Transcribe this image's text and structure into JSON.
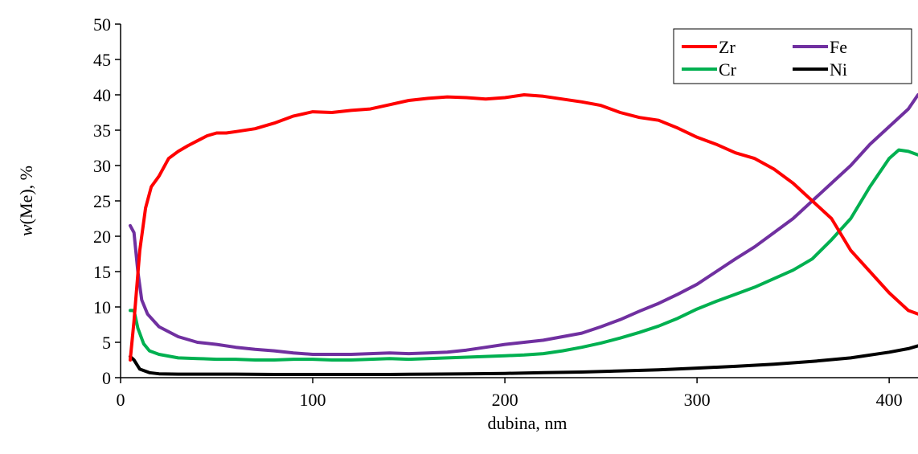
{
  "chart_data": {
    "type": "line",
    "title": "",
    "xlabel": "dubina, nm",
    "ylabel_italic": "w",
    "ylabel_rest": "(Me), %",
    "xlim": [
      0,
      415
    ],
    "ylim": [
      0,
      50
    ],
    "xticks": [
      0,
      100,
      200,
      300,
      400
    ],
    "yticks": [
      0,
      5,
      10,
      15,
      20,
      25,
      30,
      35,
      40,
      45,
      50
    ],
    "grid": false,
    "legend_position": "top-right",
    "series": [
      {
        "name": "Zr",
        "color": "#ff0000",
        "points": [
          [
            5,
            2.5
          ],
          [
            7,
            8
          ],
          [
            10,
            18
          ],
          [
            13,
            24
          ],
          [
            16,
            27
          ],
          [
            20,
            28.5
          ],
          [
            25,
            31
          ],
          [
            30,
            32
          ],
          [
            35,
            32.8
          ],
          [
            40,
            33.5
          ],
          [
            45,
            34.2
          ],
          [
            50,
            34.6
          ],
          [
            55,
            34.6
          ],
          [
            60,
            34.8
          ],
          [
            70,
            35.2
          ],
          [
            80,
            36
          ],
          [
            90,
            37
          ],
          [
            100,
            37.6
          ],
          [
            110,
            37.5
          ],
          [
            120,
            37.8
          ],
          [
            130,
            38
          ],
          [
            140,
            38.6
          ],
          [
            150,
            39.2
          ],
          [
            160,
            39.5
          ],
          [
            170,
            39.7
          ],
          [
            180,
            39.6
          ],
          [
            190,
            39.4
          ],
          [
            200,
            39.6
          ],
          [
            210,
            40
          ],
          [
            220,
            39.8
          ],
          [
            230,
            39.4
          ],
          [
            240,
            39
          ],
          [
            250,
            38.5
          ],
          [
            260,
            37.5
          ],
          [
            270,
            36.8
          ],
          [
            280,
            36.4
          ],
          [
            290,
            35.3
          ],
          [
            300,
            34
          ],
          [
            310,
            33
          ],
          [
            320,
            31.8
          ],
          [
            330,
            31
          ],
          [
            340,
            29.5
          ],
          [
            350,
            27.5
          ],
          [
            360,
            25
          ],
          [
            370,
            22.5
          ],
          [
            380,
            18
          ],
          [
            390,
            15
          ],
          [
            400,
            12
          ],
          [
            410,
            9.5
          ],
          [
            415,
            9
          ]
        ]
      },
      {
        "name": "Fe",
        "color": "#7030a0",
        "points": [
          [
            5,
            21.5
          ],
          [
            7,
            20.5
          ],
          [
            9,
            15
          ],
          [
            11,
            11
          ],
          [
            14,
            9
          ],
          [
            20,
            7.2
          ],
          [
            30,
            5.8
          ],
          [
            40,
            5
          ],
          [
            50,
            4.7
          ],
          [
            60,
            4.3
          ],
          [
            70,
            4
          ],
          [
            80,
            3.8
          ],
          [
            90,
            3.5
          ],
          [
            100,
            3.3
          ],
          [
            110,
            3.3
          ],
          [
            120,
            3.3
          ],
          [
            130,
            3.4
          ],
          [
            140,
            3.5
          ],
          [
            150,
            3.4
          ],
          [
            160,
            3.5
          ],
          [
            170,
            3.6
          ],
          [
            180,
            3.9
          ],
          [
            190,
            4.3
          ],
          [
            200,
            4.7
          ],
          [
            210,
            5
          ],
          [
            220,
            5.3
          ],
          [
            230,
            5.8
          ],
          [
            240,
            6.3
          ],
          [
            250,
            7.2
          ],
          [
            260,
            8.2
          ],
          [
            270,
            9.4
          ],
          [
            280,
            10.5
          ],
          [
            290,
            11.8
          ],
          [
            300,
            13.2
          ],
          [
            310,
            15
          ],
          [
            320,
            16.8
          ],
          [
            330,
            18.5
          ],
          [
            340,
            20.5
          ],
          [
            350,
            22.5
          ],
          [
            360,
            25
          ],
          [
            370,
            27.5
          ],
          [
            380,
            30
          ],
          [
            390,
            33
          ],
          [
            400,
            35.5
          ],
          [
            410,
            38
          ],
          [
            415,
            40
          ]
        ]
      },
      {
        "name": "Cr",
        "color": "#00b050",
        "points": [
          [
            5,
            9.5
          ],
          [
            7,
            9.5
          ],
          [
            9,
            7
          ],
          [
            12,
            4.8
          ],
          [
            15,
            3.8
          ],
          [
            20,
            3.3
          ],
          [
            30,
            2.8
          ],
          [
            40,
            2.7
          ],
          [
            50,
            2.6
          ],
          [
            60,
            2.6
          ],
          [
            70,
            2.5
          ],
          [
            80,
            2.5
          ],
          [
            90,
            2.6
          ],
          [
            100,
            2.6
          ],
          [
            110,
            2.5
          ],
          [
            120,
            2.5
          ],
          [
            130,
            2.6
          ],
          [
            140,
            2.7
          ],
          [
            150,
            2.6
          ],
          [
            160,
            2.7
          ],
          [
            170,
            2.8
          ],
          [
            180,
            2.9
          ],
          [
            190,
            3
          ],
          [
            200,
            3.1
          ],
          [
            210,
            3.2
          ],
          [
            220,
            3.4
          ],
          [
            230,
            3.8
          ],
          [
            240,
            4.3
          ],
          [
            250,
            4.9
          ],
          [
            260,
            5.6
          ],
          [
            270,
            6.4
          ],
          [
            280,
            7.3
          ],
          [
            290,
            8.4
          ],
          [
            300,
            9.7
          ],
          [
            310,
            10.8
          ],
          [
            320,
            11.8
          ],
          [
            330,
            12.8
          ],
          [
            340,
            14
          ],
          [
            350,
            15.2
          ],
          [
            360,
            16.8
          ],
          [
            370,
            19.5
          ],
          [
            380,
            22.5
          ],
          [
            390,
            27
          ],
          [
            400,
            31
          ],
          [
            405,
            32.2
          ],
          [
            410,
            32
          ],
          [
            415,
            31.5
          ]
        ]
      },
      {
        "name": "Ni",
        "color": "#000000",
        "points": [
          [
            5,
            3
          ],
          [
            7,
            2.5
          ],
          [
            10,
            1.2
          ],
          [
            15,
            0.7
          ],
          [
            20,
            0.55
          ],
          [
            30,
            0.5
          ],
          [
            40,
            0.5
          ],
          [
            60,
            0.5
          ],
          [
            80,
            0.45
          ],
          [
            100,
            0.45
          ],
          [
            120,
            0.45
          ],
          [
            140,
            0.45
          ],
          [
            160,
            0.5
          ],
          [
            180,
            0.55
          ],
          [
            200,
            0.6
          ],
          [
            220,
            0.7
          ],
          [
            240,
            0.8
          ],
          [
            260,
            0.95
          ],
          [
            280,
            1.1
          ],
          [
            300,
            1.35
          ],
          [
            320,
            1.6
          ],
          [
            340,
            1.9
          ],
          [
            360,
            2.3
          ],
          [
            380,
            2.8
          ],
          [
            400,
            3.6
          ],
          [
            410,
            4.1
          ],
          [
            415,
            4.5
          ]
        ]
      }
    ],
    "legend_order": [
      "Zr",
      "Fe",
      "Cr",
      "Ni"
    ]
  }
}
